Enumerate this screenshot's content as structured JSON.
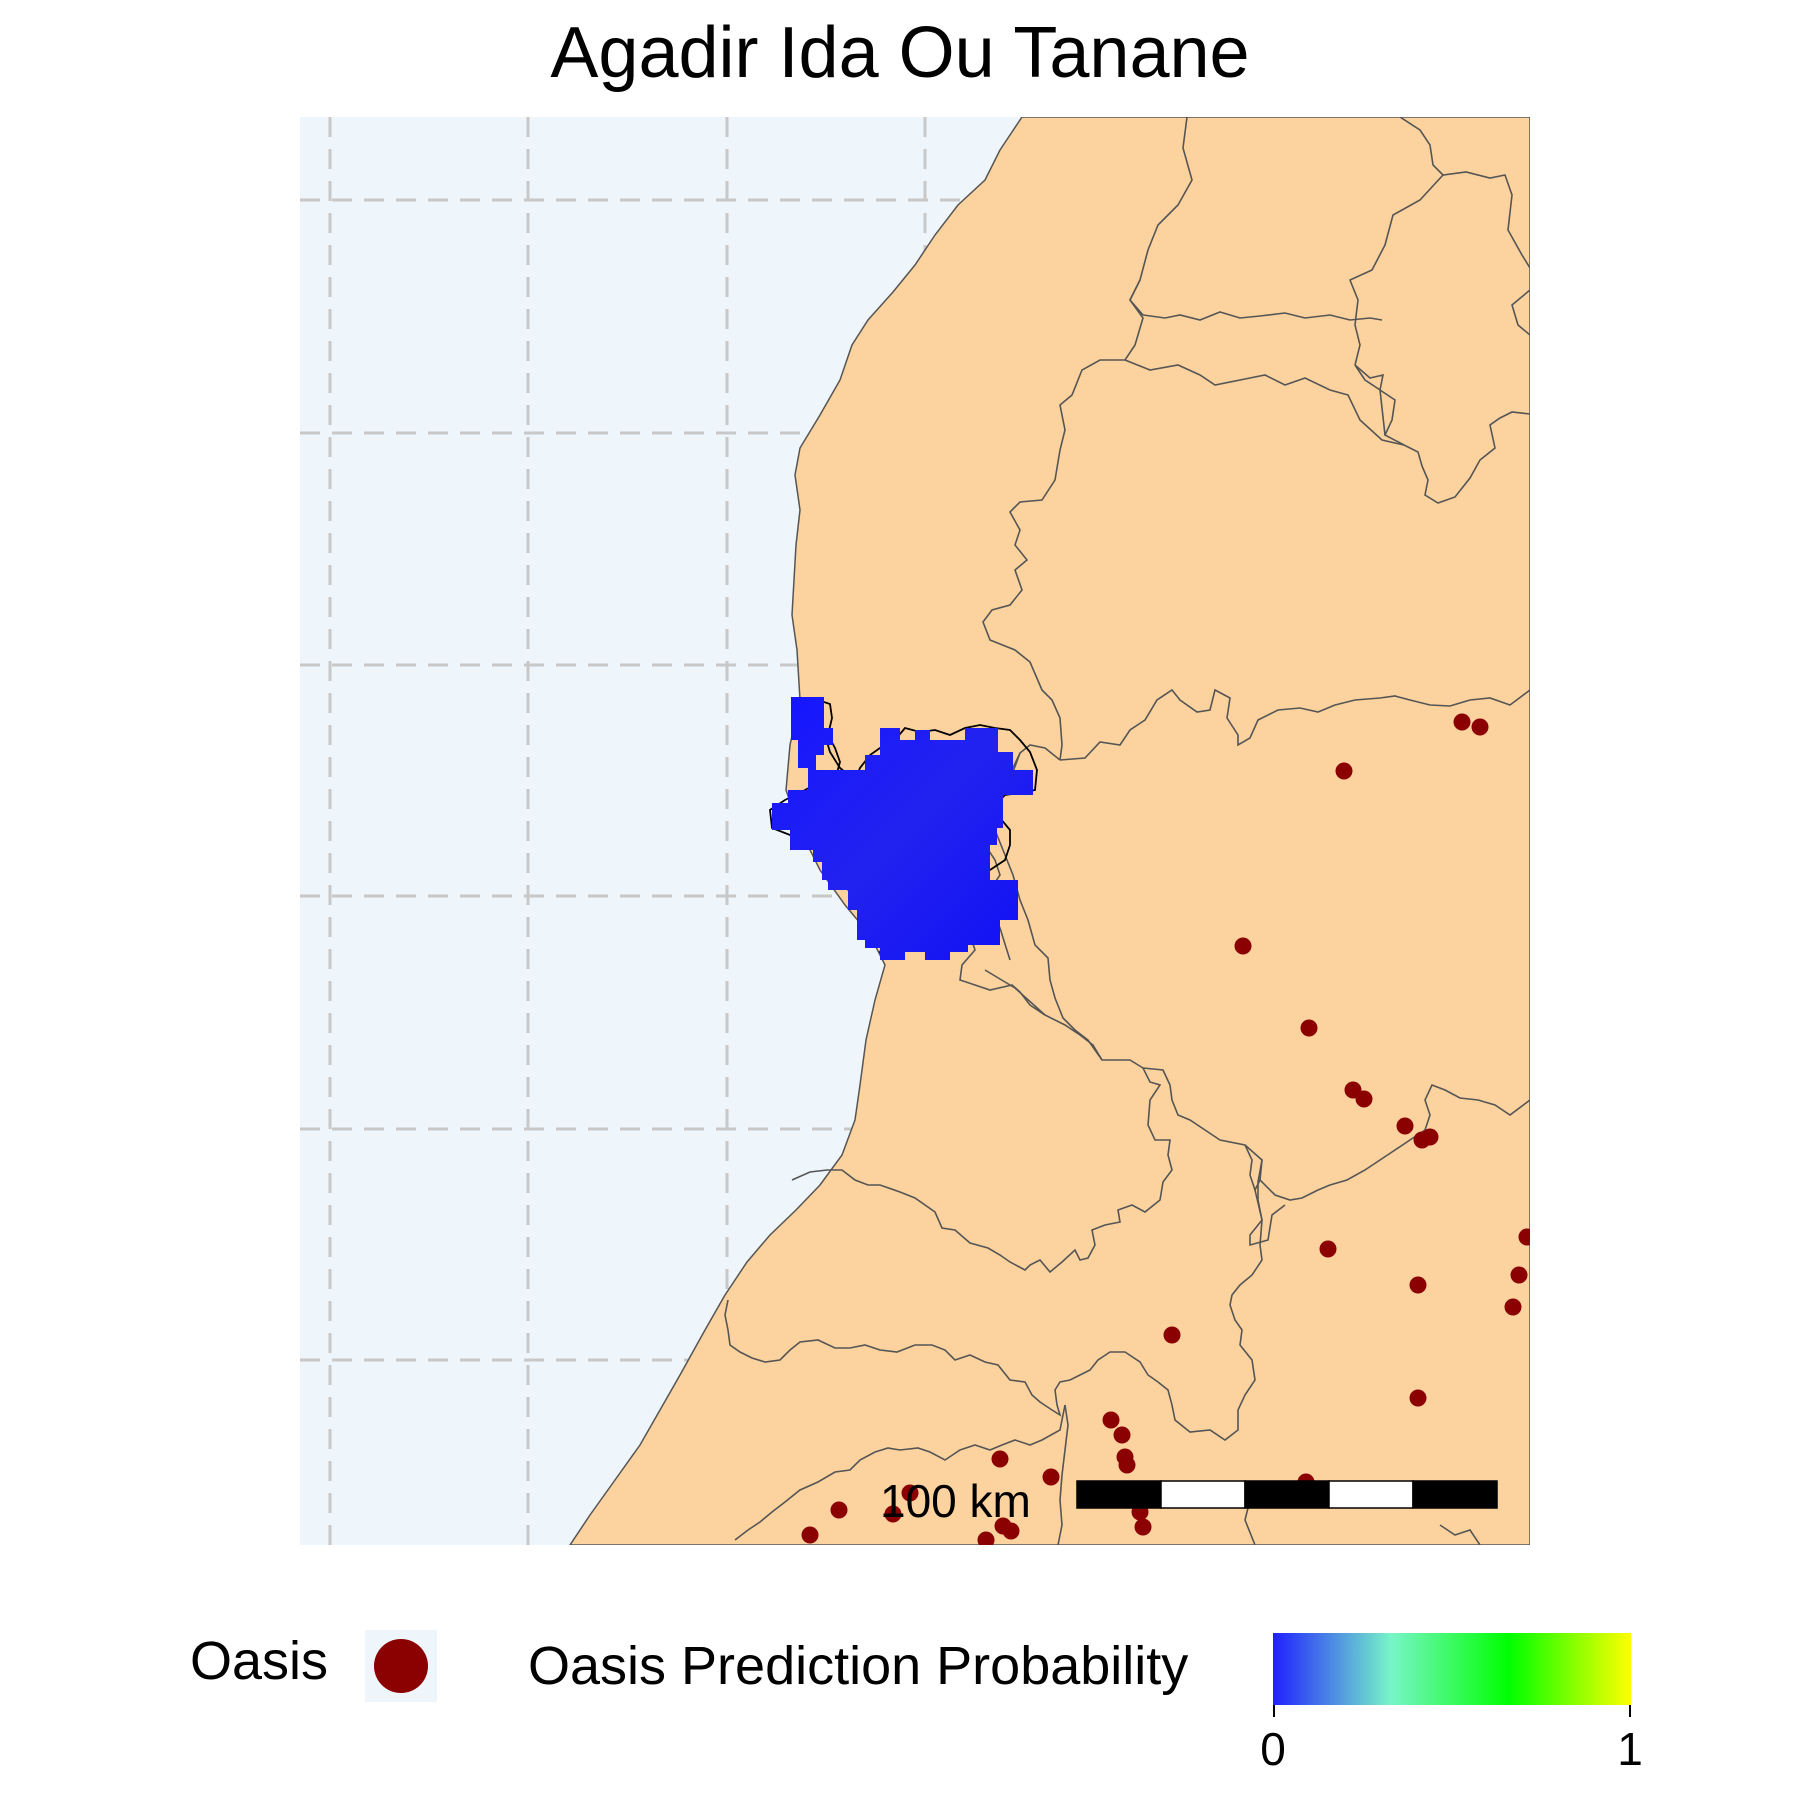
{
  "title": "Agadir Ida Ou Tanane",
  "colors": {
    "ocean": "#eef6fc",
    "land": "#fcd39f",
    "border": "#555555",
    "grid": "#c8c8c8",
    "oasis": "#8b0000",
    "prediction": "#1010f5"
  },
  "scale_bar": {
    "label": "100 km"
  },
  "legend": {
    "oasis_label": "Oasis",
    "probability_label": "Oasis Prediction Probability",
    "colorbar_stops": [
      "#2020ff",
      "#78f5c8",
      "#00ff00",
      "#ffff00"
    ],
    "min_label": "0",
    "max_label": "1"
  }
}
